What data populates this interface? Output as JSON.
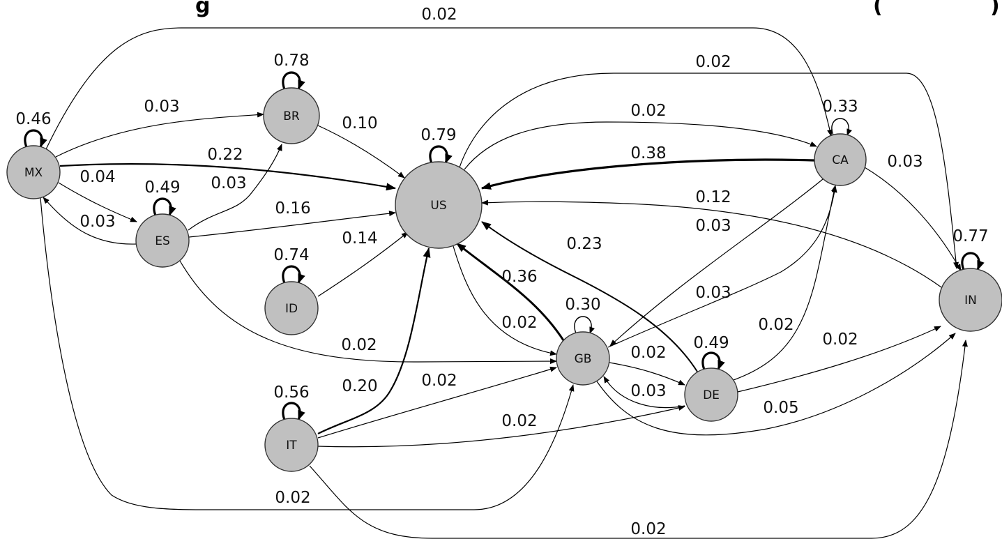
{
  "colors": {
    "node_fill": "#c0c0c0",
    "edge": "#000000",
    "text": "#111111",
    "background": "#ffffff"
  },
  "header_fragments": {
    "left": "g",
    "right": "(",
    "far_right": ")"
  },
  "nodes": [
    {
      "id": "MX",
      "label": "MX"
    },
    {
      "id": "BR",
      "label": "BR"
    },
    {
      "id": "ES",
      "label": "ES"
    },
    {
      "id": "ID",
      "label": "ID"
    },
    {
      "id": "IT",
      "label": "IT"
    },
    {
      "id": "US",
      "label": "US"
    },
    {
      "id": "GB",
      "label": "GB"
    },
    {
      "id": "DE",
      "label": "DE"
    },
    {
      "id": "CA",
      "label": "CA"
    },
    {
      "id": "IN",
      "label": "IN"
    }
  ],
  "self_loops": [
    {
      "node": "MX",
      "label": "0.46"
    },
    {
      "node": "BR",
      "label": "0.78"
    },
    {
      "node": "ES",
      "label": "0.49"
    },
    {
      "node": "ID",
      "label": "0.74"
    },
    {
      "node": "IT",
      "label": "0.56"
    },
    {
      "node": "US",
      "label": "0.79"
    },
    {
      "node": "GB",
      "label": "0.30"
    },
    {
      "node": "DE",
      "label": "0.49"
    },
    {
      "node": "CA",
      "label": "0.33"
    },
    {
      "node": "IN",
      "label": "0.77"
    }
  ],
  "edges": [
    {
      "from": "MX",
      "to": "CA",
      "label": "0.02"
    },
    {
      "from": "MX",
      "to": "BR",
      "label": "0.03"
    },
    {
      "from": "MX",
      "to": "US",
      "label": "0.22"
    },
    {
      "from": "MX",
      "to": "ES",
      "label": "0.04"
    },
    {
      "from": "ES",
      "to": "MX",
      "label": "0.03"
    },
    {
      "from": "ES",
      "to": "BR",
      "label": "0.03"
    },
    {
      "from": "ES",
      "to": "US",
      "label": "0.16"
    },
    {
      "from": "ES",
      "to": "GB",
      "label": "0.02"
    },
    {
      "from": "BR",
      "to": "US",
      "label": "0.10"
    },
    {
      "from": "ID",
      "to": "US",
      "label": "0.14"
    },
    {
      "from": "IT",
      "to": "US",
      "label": "0.20"
    },
    {
      "from": "IT",
      "to": "GB",
      "label": "0.02"
    },
    {
      "from": "IT",
      "to": "DE",
      "label": "0.02"
    },
    {
      "from": "IT",
      "to": "IN",
      "label": "0.02"
    },
    {
      "from": "MX",
      "to": "GB",
      "label": "0.02"
    },
    {
      "from": "US",
      "to": "CA",
      "label": "0.02"
    },
    {
      "from": "US",
      "to": "IN",
      "label": "0.02"
    },
    {
      "from": "US",
      "to": "GB",
      "label": "0.02"
    },
    {
      "from": "CA",
      "to": "US",
      "label": "0.38"
    },
    {
      "from": "CA",
      "to": "IN",
      "label": "0.03"
    },
    {
      "from": "CA",
      "to": "GB",
      "label": "0.03"
    },
    {
      "from": "IN",
      "to": "US",
      "label": "0.12"
    },
    {
      "from": "GB",
      "to": "US",
      "label": "0.36"
    },
    {
      "from": "GB",
      "to": "CA",
      "label": "0.03"
    },
    {
      "from": "GB",
      "to": "DE",
      "label": "0.02"
    },
    {
      "from": "GB",
      "to": "IN",
      "label": "0.05"
    },
    {
      "from": "DE",
      "to": "US",
      "label": "0.23"
    },
    {
      "from": "DE",
      "to": "GB",
      "label": "0.03"
    },
    {
      "from": "DE",
      "to": "CA",
      "label": "0.02"
    },
    {
      "from": "DE",
      "to": "IN",
      "label": "0.02"
    }
  ]
}
